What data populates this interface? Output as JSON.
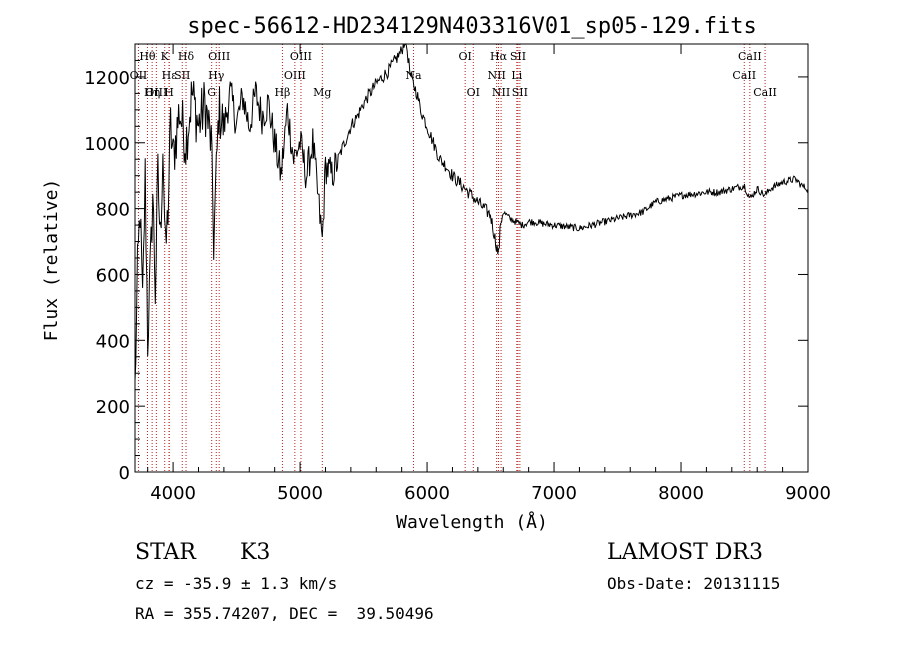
{
  "chart_data": {
    "type": "line",
    "title": "spec-56612-HD234129N403316V01_sp05-129.fits",
    "xlabel": "Wavelength (Å)",
    "ylabel": "Flux (relative)",
    "xlim": [
      3700,
      9000
    ],
    "ylim": [
      0,
      1300
    ],
    "x_ticks": [
      4000,
      5000,
      6000,
      7000,
      8000,
      9000
    ],
    "y_ticks": [
      0,
      200,
      400,
      600,
      800,
      1000,
      1200
    ],
    "grid": false,
    "series": [
      {
        "name": "spectrum",
        "x": [
          3700,
          3720,
          3740,
          3760,
          3780,
          3800,
          3820,
          3840,
          3860,
          3880,
          3900,
          3920,
          3940,
          3960,
          3980,
          4000,
          4050,
          4100,
          4150,
          4200,
          4250,
          4300,
          4320,
          4340,
          4360,
          4400,
          4450,
          4500,
          4550,
          4600,
          4650,
          4700,
          4750,
          4800,
          4850,
          4900,
          4950,
          5000,
          5050,
          5100,
          5150,
          5175,
          5200,
          5250,
          5300,
          5350,
          5400,
          5450,
          5500,
          5550,
          5600,
          5650,
          5700,
          5750,
          5800,
          5830,
          5850,
          5870,
          5890,
          5920,
          5950,
          6000,
          6050,
          6100,
          6150,
          6200,
          6250,
          6300,
          6350,
          6400,
          6450,
          6500,
          6540,
          6563,
          6580,
          6600,
          6650,
          6700,
          6750,
          6800,
          6850,
          6900,
          7000,
          7100,
          7200,
          7300,
          7400,
          7500,
          7600,
          7700,
          7800,
          7900,
          8000,
          8100,
          8200,
          8300,
          8400,
          8500,
          8542,
          8600,
          8662,
          8700,
          8800,
          8900,
          8950,
          9000
        ],
        "y": [
          250,
          600,
          800,
          500,
          900,
          400,
          600,
          850,
          550,
          900,
          700,
          1000,
          650,
          800,
          1050,
          950,
          1100,
          1000,
          1150,
          1050,
          1120,
          1000,
          700,
          900,
          1100,
          1050,
          1150,
          1060,
          1140,
          1050,
          1150,
          1080,
          1120,
          1000,
          900,
          1100,
          950,
          1000,
          900,
          1000,
          800,
          700,
          930,
          900,
          950,
          1000,
          1050,
          1080,
          1120,
          1150,
          1180,
          1200,
          1220,
          1250,
          1280,
          1320,
          1260,
          1200,
          1180,
          1150,
          1100,
          1050,
          1000,
          950,
          930,
          900,
          880,
          860,
          840,
          820,
          800,
          780,
          700,
          660,
          760,
          790,
          770,
          760,
          750,
          760,
          760,
          755,
          750,
          745,
          740,
          750,
          760,
          770,
          780,
          790,
          820,
          830,
          840,
          845,
          850,
          850,
          860,
          870,
          830,
          860,
          840,
          860,
          880,
          890,
          870,
          860
        ]
      }
    ],
    "line_markers": [
      {
        "label": "Hθ",
        "x": 3798,
        "row": 0
      },
      {
        "label": "OII",
        "x": 3727,
        "row": 1
      },
      {
        "label": "OIII",
        "x": 3868,
        "row": 2
      },
      {
        "label": "K",
        "x": 3934,
        "row": 0
      },
      {
        "label": "Hε",
        "x": 3970,
        "row": 1
      },
      {
        "label": "Hη",
        "x": 3835,
        "row": 2
      },
      {
        "label": "Hδ",
        "x": 4102,
        "row": 0
      },
      {
        "label": "SII",
        "x": 4072,
        "row": 1
      },
      {
        "label": "H",
        "x": 3968,
        "row": 2
      },
      {
        "label": "OIII",
        "x": 4363,
        "row": 0
      },
      {
        "label": "Hγ",
        "x": 4340,
        "row": 1
      },
      {
        "label": "G",
        "x": 4304,
        "row": 2
      },
      {
        "label": "Hβ",
        "x": 4861,
        "row": 2
      },
      {
        "label": "OIII",
        "x": 5007,
        "row": 0
      },
      {
        "label": "OIII",
        "x": 4959,
        "row": 1
      },
      {
        "label": "Mg",
        "x": 5175,
        "row": 2
      },
      {
        "label": "Na",
        "x": 5893,
        "row": 1
      },
      {
        "label": "OI",
        "x": 6300,
        "row": 0
      },
      {
        "label": "OI",
        "x": 6364,
        "row": 2
      },
      {
        "label": "Hα",
        "x": 6563,
        "row": 0
      },
      {
        "label": "NII",
        "x": 6548,
        "row": 1
      },
      {
        "label": "NII",
        "x": 6583,
        "row": 2
      },
      {
        "label": "SII",
        "x": 6716,
        "row": 0
      },
      {
        "label": "Li",
        "x": 6707,
        "row": 1
      },
      {
        "label": "SII",
        "x": 6731,
        "row": 2
      },
      {
        "label": "CaII",
        "x": 8542,
        "row": 0
      },
      {
        "label": "CaII",
        "x": 8498,
        "row": 1
      },
      {
        "label": "CaII",
        "x": 8662,
        "row": 2
      }
    ]
  },
  "footer": {
    "object_class": "STAR",
    "subclass": "K3",
    "survey": "LAMOST DR3",
    "cz": "cz = -35.9 ± 1.3 km/s",
    "obs_date": "Obs-Date: 20131115",
    "coords": "RA = 355.74207, DEC =  39.50496"
  }
}
